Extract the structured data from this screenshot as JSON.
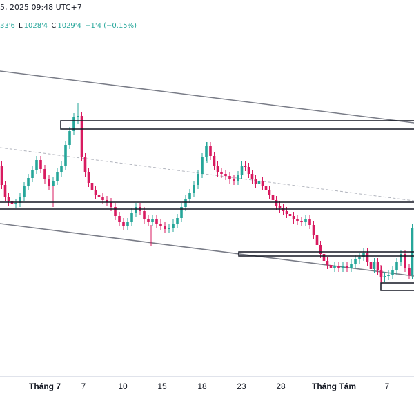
{
  "header": {
    "timestamp": "5, 2025 09:48 UTC+7",
    "open_tail": "33'6",
    "low_label": "L",
    "low_value": "1028'4",
    "close_label": "C",
    "close_value": "1029'4",
    "change": "−1'4 (−0.15%)"
  },
  "colors": {
    "up": "#26a69a",
    "down": "#d81b60",
    "zone": "#131722",
    "trendline": "#787b86",
    "midline": "#b2b5be"
  },
  "chart_data": {
    "type": "candlestick",
    "x_tick_labels": [
      "Tháng 7",
      "7",
      "10",
      "15",
      "18",
      "23",
      "28",
      "Tháng Tám",
      "7"
    ],
    "drawings": [
      "upper-trendline",
      "lower-trendline",
      "dashed-midline",
      "zone-top",
      "zone-middle",
      "zone-right",
      "zone-bottom-right"
    ]
  }
}
